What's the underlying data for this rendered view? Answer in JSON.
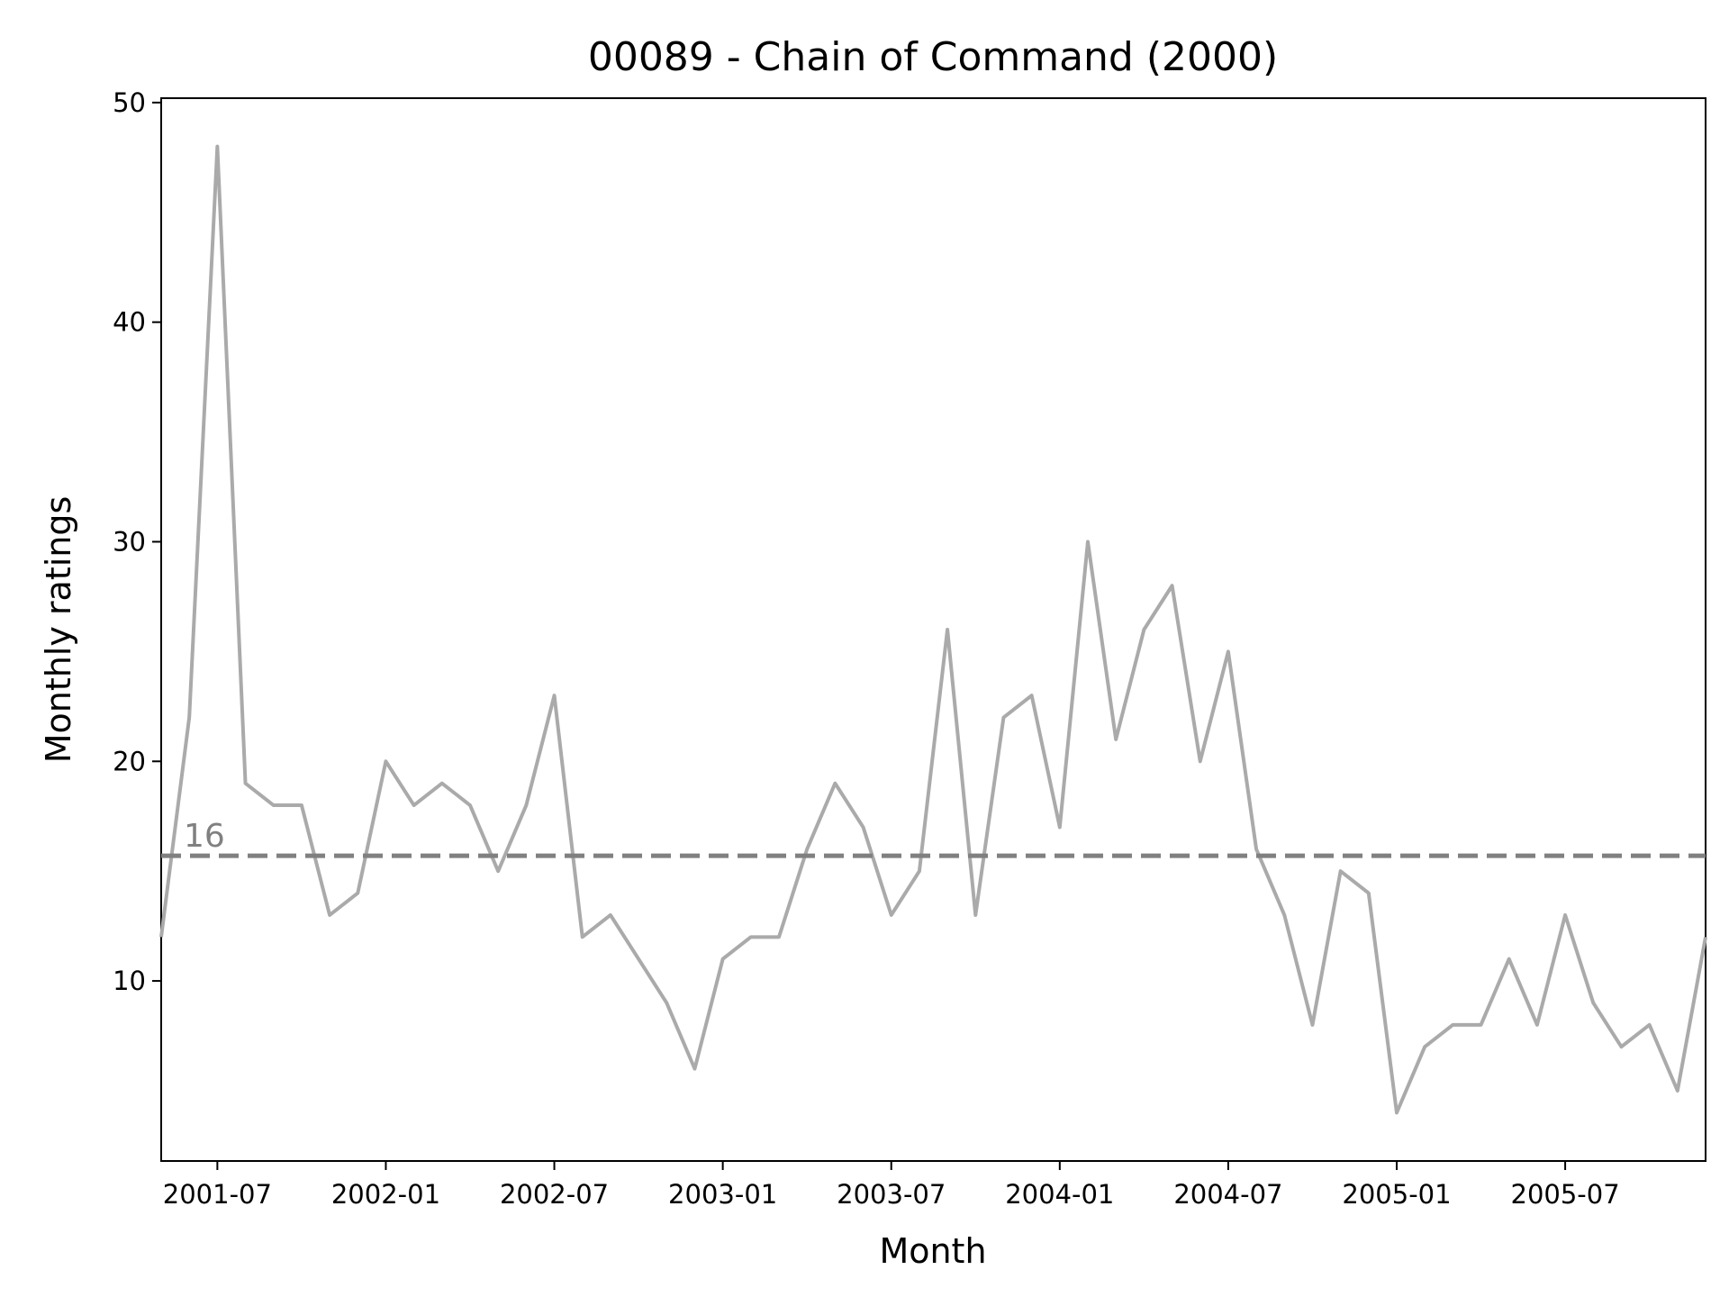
{
  "chart_data": {
    "type": "line",
    "title": "00089 - Chain of Command (2000)",
    "xlabel": "Month",
    "ylabel": "Monthly ratings",
    "ylim": [
      1.8,
      50.2
    ],
    "xlim": [
      "2001-05",
      "2005-12"
    ],
    "grid": false,
    "x_ticks": [
      "2001-07",
      "2002-01",
      "2002-07",
      "2003-01",
      "2003-07",
      "2004-01",
      "2004-07",
      "2005-01",
      "2005-07"
    ],
    "y_ticks": [
      10,
      20,
      30,
      40,
      50
    ],
    "series": [
      {
        "color": "#aaaaaa",
        "x": [
          "2001-05",
          "2001-06",
          "2001-07",
          "2001-08",
          "2001-09",
          "2001-10",
          "2001-11",
          "2001-12",
          "2002-01",
          "2002-02",
          "2002-03",
          "2002-04",
          "2002-05",
          "2002-06",
          "2002-07",
          "2002-08",
          "2002-09",
          "2002-10",
          "2002-11",
          "2002-12",
          "2003-01",
          "2003-02",
          "2003-03",
          "2003-04",
          "2003-05",
          "2003-06",
          "2003-07",
          "2003-08",
          "2003-09",
          "2003-10",
          "2003-11",
          "2003-12",
          "2004-01",
          "2004-02",
          "2004-03",
          "2004-04",
          "2004-05",
          "2004-06",
          "2004-07",
          "2004-08",
          "2004-09",
          "2004-10",
          "2004-11",
          "2004-12",
          "2005-01",
          "2005-02",
          "2005-03",
          "2005-04",
          "2005-05",
          "2005-06",
          "2005-07",
          "2005-08",
          "2005-09",
          "2005-10",
          "2005-11",
          "2005-12"
        ],
        "values": [
          12,
          22,
          48,
          19,
          18,
          18,
          13,
          14,
          20,
          18,
          19,
          18,
          15,
          18,
          23,
          12,
          13,
          11,
          9,
          6,
          11,
          12,
          12,
          16,
          19,
          17,
          13,
          15,
          26,
          13,
          22,
          23,
          17,
          30,
          21,
          26,
          28,
          20,
          25,
          16,
          13,
          8,
          15,
          14,
          4,
          7,
          8,
          8,
          11,
          8,
          13,
          9,
          7,
          8,
          5,
          12
        ]
      }
    ],
    "reference_line": {
      "value": 15.7,
      "label": "16",
      "style": "dashed",
      "color": "#808080"
    }
  }
}
